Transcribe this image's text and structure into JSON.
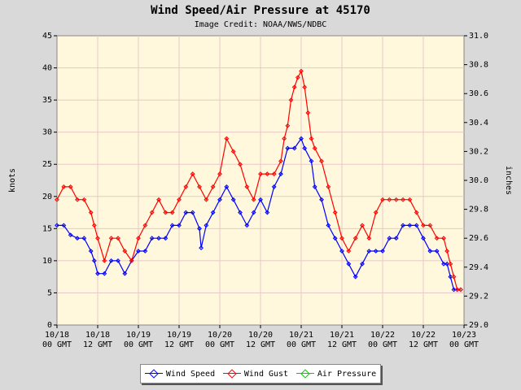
{
  "chart_data": {
    "type": "line",
    "title": "Wind Speed/Air Pressure at 45170",
    "subtitle": "Image Credit: NOAA/NWS/NDBC",
    "ylabel_left": "knots",
    "ylabel_right": "inches",
    "ylim_left": [
      0,
      45
    ],
    "ylim_right": [
      29.0,
      31.0
    ],
    "yticks_left": [
      "0",
      "5",
      "10",
      "15",
      "20",
      "25",
      "30",
      "35",
      "40",
      "45"
    ],
    "yticks_right": [
      "29.0",
      "29.2",
      "29.4",
      "29.6",
      "29.8",
      "30.0",
      "30.2",
      "30.4",
      "30.6",
      "30.8",
      "31.0"
    ],
    "xlim_hours": [
      0,
      120
    ],
    "xticks": [
      {
        "date": "10/18",
        "time": "00 GMT"
      },
      {
        "date": "10/18",
        "time": "12 GMT"
      },
      {
        "date": "10/19",
        "time": "00 GMT"
      },
      {
        "date": "10/19",
        "time": "12 GMT"
      },
      {
        "date": "10/20",
        "time": "00 GMT"
      },
      {
        "date": "10/20",
        "time": "12 GMT"
      },
      {
        "date": "10/21",
        "time": "00 GMT"
      },
      {
        "date": "10/21",
        "time": "12 GMT"
      },
      {
        "date": "10/22",
        "time": "00 GMT"
      },
      {
        "date": "10/22",
        "time": "12 GMT"
      },
      {
        "date": "10/23",
        "time": "00 GMT"
      }
    ],
    "grid": true,
    "legend_position": "bottom",
    "colors": {
      "plot_bg": "#fff8dc",
      "page_bg": "#d9d9d9",
      "grid": "#e8c8c8"
    },
    "series": [
      {
        "name": "Wind Speed",
        "color": "#0000ff",
        "axis": "left",
        "x": [
          0,
          2,
          4,
          6,
          8,
          10,
          11,
          12,
          14,
          16,
          18,
          20,
          22,
          24,
          26,
          28,
          30,
          32,
          34,
          36,
          38,
          40,
          42,
          42.5,
          44,
          46,
          48,
          50,
          52,
          54,
          56,
          58,
          60,
          62,
          64,
          66,
          68,
          70,
          72,
          73,
          75,
          76,
          78,
          80,
          82,
          84,
          86,
          88,
          90,
          92,
          94,
          96,
          98,
          100,
          102,
          104,
          106,
          108,
          110,
          112,
          114,
          115,
          116,
          117,
          118,
          119
        ],
        "y": [
          15.5,
          15.5,
          14,
          13.5,
          13.5,
          11.5,
          10,
          8,
          8,
          10,
          10,
          8,
          10,
          11.5,
          11.5,
          13.5,
          13.5,
          13.5,
          15.5,
          15.5,
          17.5,
          17.5,
          15,
          12,
          15.5,
          17.5,
          19.5,
          21.5,
          19.5,
          17.5,
          15.5,
          17.5,
          19.5,
          17.5,
          21.5,
          23.5,
          27.5,
          27.5,
          29,
          27.5,
          25.5,
          21.5,
          19.5,
          15.5,
          13.5,
          11.5,
          9.5,
          7.5,
          9.5,
          11.5,
          11.5,
          11.5,
          13.5,
          13.5,
          15.5,
          15.5,
          15.5,
          13.5,
          11.5,
          11.5,
          9.5,
          9.5,
          7.5,
          5.5,
          5.5,
          5.5
        ]
      },
      {
        "name": "Wind Gust",
        "color": "#ff0000",
        "axis": "left",
        "x": [
          0,
          2,
          4,
          6,
          8,
          10,
          11,
          12,
          14,
          16,
          18,
          20,
          22,
          24,
          26,
          28,
          30,
          32,
          34,
          36,
          38,
          40,
          42,
          44,
          46,
          48,
          50,
          52,
          54,
          56,
          58,
          60,
          62,
          64,
          66,
          67,
          68,
          69,
          70,
          71,
          72,
          73,
          74,
          75,
          76,
          78,
          80,
          82,
          84,
          86,
          88,
          90,
          92,
          94,
          96,
          98,
          100,
          102,
          104,
          106,
          108,
          110,
          112,
          114,
          115,
          116,
          117,
          118,
          119
        ],
        "y": [
          19.5,
          21.5,
          21.5,
          19.5,
          19.5,
          17.5,
          15.5,
          13.5,
          10,
          13.5,
          13.5,
          11.5,
          10,
          13.5,
          15.5,
          17.5,
          19.5,
          17.5,
          17.5,
          19.5,
          21.5,
          23.5,
          21.5,
          19.5,
          21.5,
          23.5,
          29,
          27,
          25,
          21.5,
          19.5,
          23.5,
          23.5,
          23.5,
          25.5,
          29,
          31,
          35,
          37,
          38.5,
          39.5,
          37,
          33,
          29,
          27.5,
          25.5,
          21.5,
          17.5,
          13.5,
          11.5,
          13.5,
          15.5,
          13.5,
          17.5,
          19.5,
          19.5,
          19.5,
          19.5,
          19.5,
          17.5,
          15.5,
          15.5,
          13.5,
          13.5,
          11.5,
          9.5,
          7.5,
          5.5,
          5.5
        ]
      },
      {
        "name": "Air Pressure",
        "color": "#00cc00",
        "axis": "right",
        "x": [],
        "y": []
      }
    ]
  }
}
